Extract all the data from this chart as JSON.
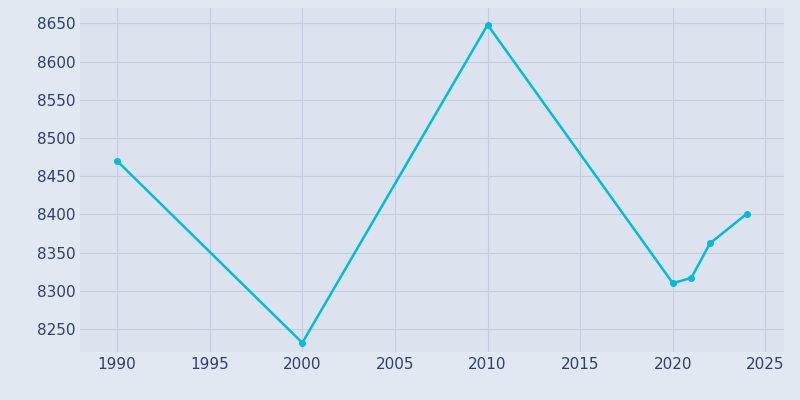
{
  "years": [
    1990,
    2000,
    2010,
    2020,
    2021,
    2022,
    2024
  ],
  "population": [
    8470,
    8232,
    8648,
    8310,
    8317,
    8362,
    8401
  ],
  "line_color": "#00bcd4",
  "bg_color": "#e2e8f2",
  "plot_bg_color": "#dce3ef",
  "text_color": "#2e3f6e",
  "xlim": [
    1988,
    2026
  ],
  "ylim": [
    8220,
    8670
  ],
  "xticks": [
    1990,
    1995,
    2000,
    2005,
    2010,
    2015,
    2020,
    2025
  ],
  "yticks": [
    8250,
    8300,
    8350,
    8400,
    8450,
    8500,
    8550,
    8600,
    8650
  ],
  "grid_color": "#c5cedf",
  "line_width": 1.8,
  "marker": "o",
  "marker_size": 4,
  "tick_fontsize": 11
}
